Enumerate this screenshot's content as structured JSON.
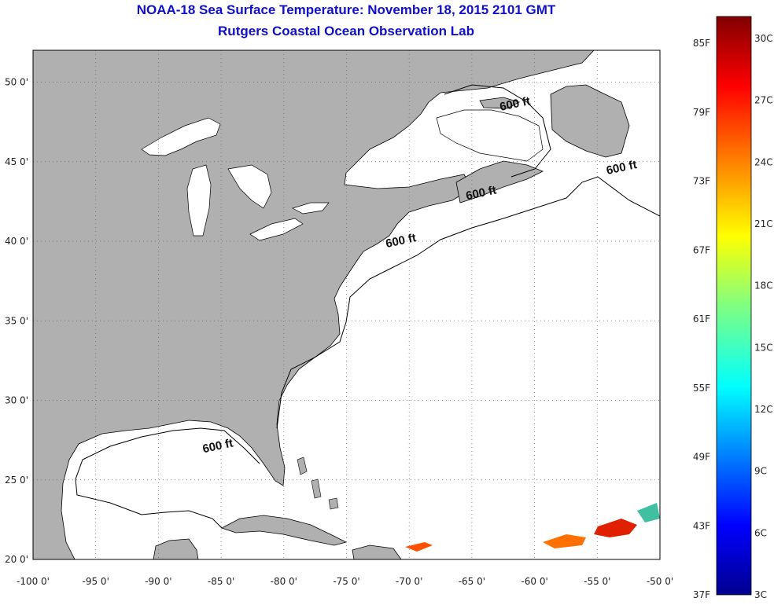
{
  "header": {
    "title": "NOAA-18 Sea Surface Temperature:  November 18, 2015 2101 GMT",
    "subtitle": "Rutgers Coastal Ocean Observation Lab"
  },
  "map": {
    "lon_range": [
      -100,
      -50
    ],
    "lat_range": [
      20,
      52
    ],
    "land_color": "#b0b0b0",
    "ocean_color": "#ffffff",
    "grid": "dotted",
    "x_ticks": [
      "-100 0'",
      "-95 0'",
      "-90 0'",
      "-85 0'",
      "-80 0'",
      "-75 0'",
      "-70 0'",
      "-65 0'",
      "-60 0'",
      "-55 0'",
      "-50 0'"
    ],
    "y_ticks": [
      "50 0'",
      "45 0'",
      "40 0'",
      "35 0'",
      "30 0'",
      "25 0'",
      "20 0'"
    ],
    "contour_labels": [
      {
        "text": "600 ft",
        "lon": -61.5,
        "lat": 48.4
      },
      {
        "text": "600 ft",
        "lon": -53.0,
        "lat": 44.4
      },
      {
        "text": "600 ft",
        "lon": -64.2,
        "lat": 42.8
      },
      {
        "text": "600 ft",
        "lon": -70.6,
        "lat": 39.8
      },
      {
        "text": "600 ft",
        "lon": -85.2,
        "lat": 26.9
      }
    ]
  },
  "colorbar": {
    "f_labels": [
      "85F",
      "79F",
      "73F",
      "67F",
      "61F",
      "55F",
      "49F",
      "43F",
      "37F"
    ],
    "c_labels": [
      "30C",
      "27C",
      "24C",
      "21C",
      "18C",
      "15C",
      "12C",
      "9C",
      "6C",
      "3C"
    ],
    "colors": [
      "#00008f",
      "#0000ff",
      "#0080ff",
      "#00ffff",
      "#80ff80",
      "#ffff00",
      "#ff8000",
      "#ff0000",
      "#800000"
    ]
  }
}
